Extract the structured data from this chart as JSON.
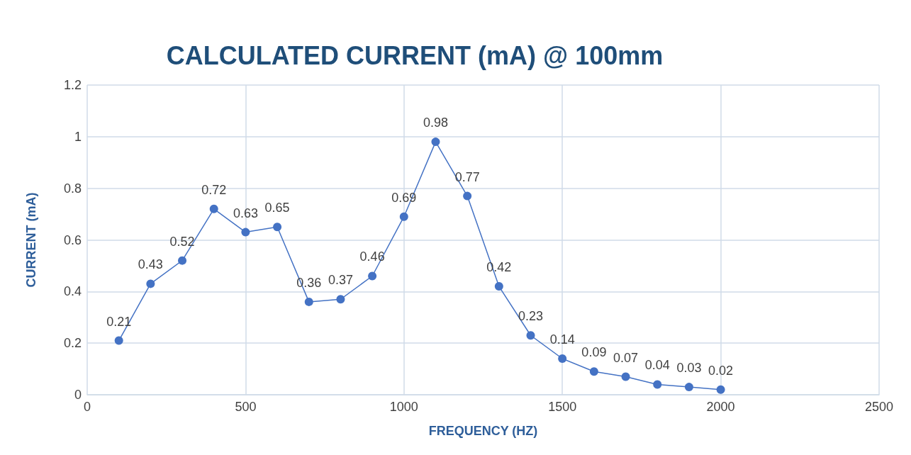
{
  "chart_data": {
    "type": "line",
    "title": "CALCULATED CURRENT (mA) @ 100mm",
    "xlabel": "FREQUENCY (HZ)",
    "ylabel": "CURRENT (mA)",
    "x": [
      100,
      200,
      300,
      400,
      500,
      600,
      700,
      800,
      900,
      1000,
      1100,
      1200,
      1300,
      1400,
      1500,
      1600,
      1700,
      1800,
      1900,
      2000
    ],
    "series": [
      {
        "color": "#4472c4",
        "values": [
          0.21,
          0.43,
          0.52,
          0.72,
          0.63,
          0.65,
          0.36,
          0.37,
          0.46,
          0.69,
          0.98,
          0.77,
          0.42,
          0.23,
          0.14,
          0.09,
          0.07,
          0.04,
          0.03,
          0.02
        ]
      }
    ],
    "xlim": [
      0,
      2500
    ],
    "xticks": [
      0,
      500,
      1000,
      1500,
      2000,
      2500
    ],
    "ylim": [
      0,
      1.2
    ],
    "yticks": [
      0,
      0.2,
      0.4,
      0.6,
      0.8,
      1,
      1.2
    ],
    "grid": true,
    "marker": "circle",
    "data_labels": true
  }
}
